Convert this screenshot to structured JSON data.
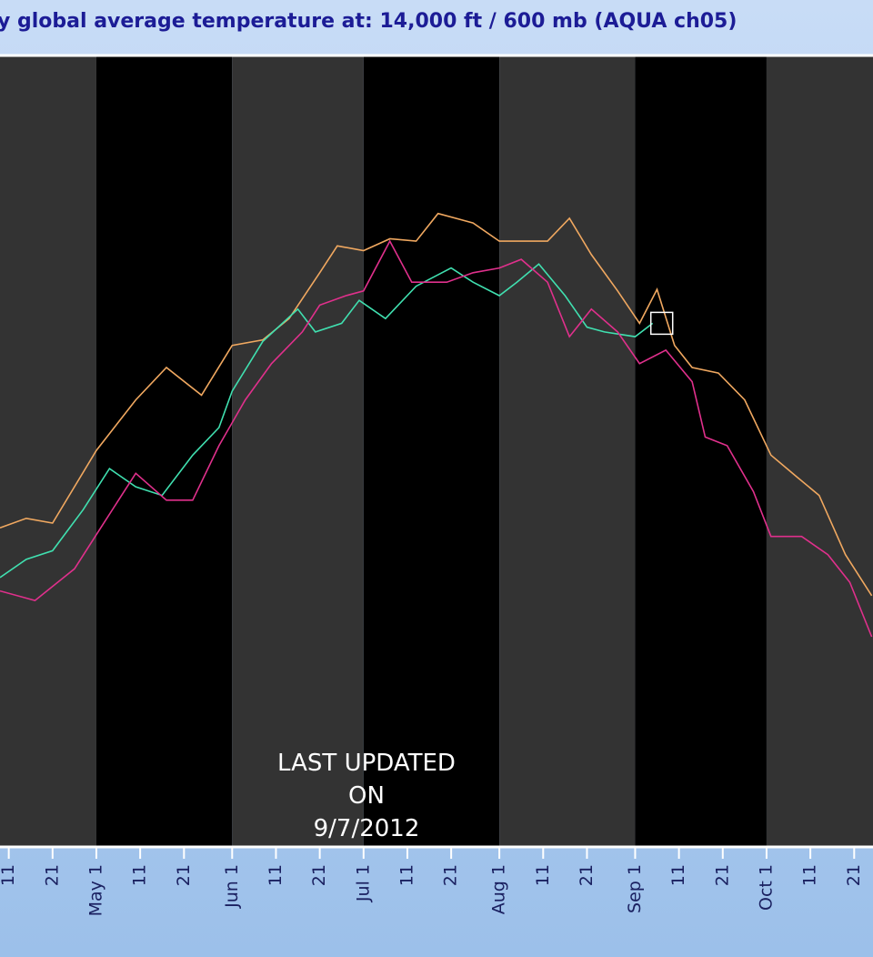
{
  "chart_data": {
    "type": "line",
    "title": "y global average temperature at: 14,000 ft / 600 mb (AQUA ch05)",
    "annotation": [
      "LAST UPDATED",
      "ON",
      "9/7/2012"
    ],
    "xlim": [
      99,
      298.3
    ],
    "ylim": [
      0,
      100
    ],
    "xticks": [
      {
        "value": 101,
        "label": "11"
      },
      {
        "value": 111,
        "label": "21"
      },
      {
        "value": 121,
        "label": "May 1"
      },
      {
        "value": 131,
        "label": "11"
      },
      {
        "value": 141,
        "label": "21"
      },
      {
        "value": 152,
        "label": "Jun 1"
      },
      {
        "value": 162,
        "label": "11"
      },
      {
        "value": 172,
        "label": "21"
      },
      {
        "value": 182,
        "label": "Jul 1"
      },
      {
        "value": 192,
        "label": "11"
      },
      {
        "value": 202,
        "label": "21"
      },
      {
        "value": 213,
        "label": "Aug 1"
      },
      {
        "value": 223,
        "label": "11"
      },
      {
        "value": 233,
        "label": "21"
      },
      {
        "value": 244,
        "label": "Sep 1"
      },
      {
        "value": 254,
        "label": "11"
      },
      {
        "value": 264,
        "label": "21"
      },
      {
        "value": 274,
        "label": "Oct 1"
      },
      {
        "value": 284,
        "label": "11"
      },
      {
        "value": 294,
        "label": "21"
      }
    ],
    "band_colors": [
      "#333333",
      "#000000"
    ],
    "series": [
      {
        "color": "#f0a860",
        "x": [
          99,
          105,
          111,
          121,
          130,
          137,
          145,
          152,
          159,
          165,
          172,
          176,
          182,
          188,
          194,
          199,
          207,
          213,
          219,
          224,
          229,
          234,
          240,
          245,
          249,
          253,
          257,
          263,
          269,
          275,
          281,
          286,
          292,
          298
        ],
        "values": [
          40.3,
          41.5,
          40.9,
          50.1,
          56.5,
          60.6,
          57.1,
          63.4,
          64.1,
          66.8,
          72.6,
          76.0,
          75.4,
          76.9,
          76.6,
          80.1,
          78.9,
          76.6,
          76.6,
          76.6,
          79.5,
          74.9,
          70.3,
          66.2,
          70.5,
          63.4,
          60.6,
          59.9,
          56.5,
          49.5,
          46.7,
          44.4,
          36.9,
          31.7
        ]
      },
      {
        "color": "#40e0b0",
        "current_marker": true,
        "x": [
          99,
          105,
          111,
          118,
          124,
          130,
          136,
          143,
          149,
          152,
          159,
          167,
          171,
          177,
          181,
          187,
          194,
          202,
          207,
          213,
          217,
          222,
          228,
          233,
          237,
          244,
          248
        ],
        "values": [
          34.0,
          36.3,
          37.4,
          42.6,
          47.8,
          45.5,
          44.4,
          49.5,
          53.0,
          57.6,
          63.9,
          68.0,
          65.1,
          66.2,
          69.1,
          66.8,
          70.9,
          73.2,
          71.4,
          69.7,
          71.4,
          73.7,
          69.7,
          65.7,
          65.1,
          64.5,
          66.2
        ]
      },
      {
        "color": "#e0308c",
        "x": [
          99,
          107,
          116,
          122,
          130,
          137,
          143,
          149,
          155,
          161,
          168,
          172,
          178,
          182,
          188,
          193,
          201,
          207,
          213,
          218,
          224,
          229,
          234,
          240,
          245,
          251,
          257,
          260,
          265,
          271,
          275,
          282,
          288,
          293,
          298
        ],
        "values": [
          32.3,
          31.1,
          35.1,
          40.3,
          47.2,
          43.8,
          43.8,
          50.7,
          56.5,
          61.1,
          65.1,
          68.5,
          69.7,
          70.3,
          76.6,
          71.4,
          71.4,
          72.6,
          73.2,
          74.3,
          71.4,
          64.5,
          68.0,
          65.1,
          61.1,
          62.8,
          58.8,
          51.8,
          50.7,
          44.9,
          39.2,
          39.2,
          36.9,
          33.4,
          26.5
        ]
      }
    ]
  }
}
